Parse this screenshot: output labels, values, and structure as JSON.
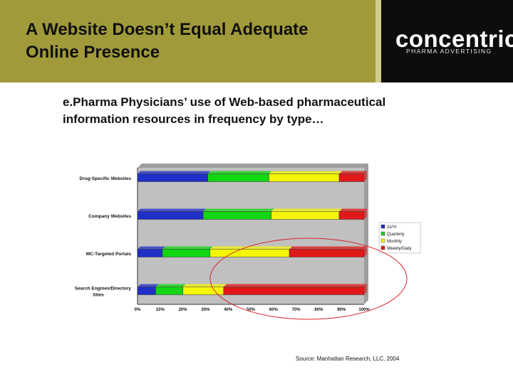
{
  "slide": {
    "title": "A Website Doesn’t Equal Adequate\nOnline Presence",
    "logo": {
      "name": "concentric",
      "tagline": "PHARMA ADVERTISING"
    },
    "subtitle": "e.Pharma Physicians’ use of Web-based pharmaceutical\ninformation resources in frequency by type…",
    "source": "Source: Manhattan Research, LLC, 2004"
  },
  "colors": {
    "header_bg": "#a09a3a",
    "logo_bg": "#0d0d0d",
    "plot_bg": "#c0c0c0",
    "annotation": "#d9262b"
  },
  "chart_data": {
    "type": "bar",
    "orientation": "horizontal",
    "stacked": true,
    "normalized": true,
    "categories": [
      "Drug-Specific Websites",
      "Company Websites",
      "MC-Targeted Portals",
      "Search Engines/Directory Sites"
    ],
    "series": [
      {
        "name": "2x/Yr",
        "color": "#1f2fc8",
        "values": [
          31,
          29,
          11,
          8
        ]
      },
      {
        "name": "Quarterly",
        "color": "#12d612",
        "values": [
          27,
          30,
          21,
          12
        ]
      },
      {
        "name": "Monthly",
        "color": "#f5f50a",
        "values": [
          31,
          30,
          35,
          18
        ]
      },
      {
        "name": "Weekly/Daily",
        "color": "#e01818",
        "values": [
          11,
          11,
          33,
          62
        ]
      }
    ],
    "xticks": [
      "0%",
      "10%",
      "20%",
      "30%",
      "40%",
      "50%",
      "60%",
      "70%",
      "80%",
      "90%",
      "100%"
    ],
    "xlim": [
      0,
      100
    ],
    "legend_position": "right",
    "grid": false,
    "annotation": "red ellipse highlighting Weekly/Daily and Monthly use of portals and search engines"
  }
}
